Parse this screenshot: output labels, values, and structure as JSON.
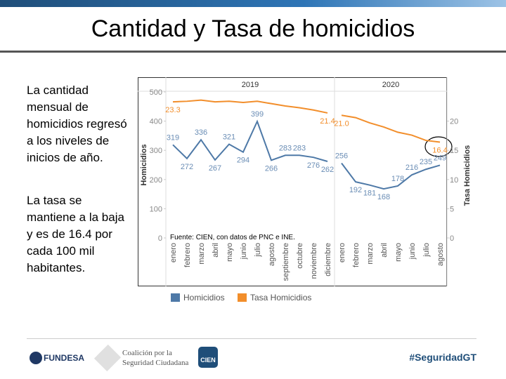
{
  "header": {
    "title": "Cantidad y Tasa de homicidios"
  },
  "body": {
    "paragraphs": [
      "La cantidad mensual de homicidios regresó a los niveles de inicios de año.",
      "La tasa se mantiene a la baja y es de 16.4 por cada 100 mil habitantes."
    ]
  },
  "footer": {
    "logos": [
      "FUNDESA",
      "Coalición por la",
      "Seguridad Ciudadana",
      "CIEN"
    ],
    "hashtag": "#SeguridadGT"
  },
  "chart_data": [
    {
      "type": "line",
      "title": "2019",
      "ylabel": "Homicidios",
      "annotation": "Fuente: CIEN, con datos de PNC e INE.",
      "categories": [
        "enero",
        "febrero",
        "marzo",
        "abril",
        "mayo",
        "junio",
        "julio",
        "agosto",
        "septiembre",
        "octubre",
        "noviembre",
        "diciembre"
      ],
      "ylim": [
        0,
        500
      ],
      "yticks": [
        0,
        100,
        200,
        300,
        400,
        500
      ],
      "y2lim": [
        0,
        25
      ],
      "series": [
        {
          "name": "Homicidios",
          "color": "#4e79a7",
          "values": [
            319,
            272,
            336,
            267,
            321,
            294,
            399,
            266,
            283,
            283,
            276,
            262
          ]
        },
        {
          "name": "Tasa Homicidios",
          "color": "#f28e2b",
          "axis": "y2",
          "values": [
            23.3,
            23.4,
            23.6,
            23.3,
            23.4,
            23.2,
            23.4,
            23.0,
            22.6,
            22.3,
            21.9,
            21.4
          ],
          "value_labels": [
            "23.3",
            null,
            null,
            null,
            null,
            null,
            null,
            null,
            null,
            null,
            null,
            "21.4"
          ]
        }
      ]
    },
    {
      "type": "line",
      "title": "2020",
      "y2label": "Tasa Homicidios",
      "categories": [
        "enero",
        "febrero",
        "marzo",
        "abril",
        "mayo",
        "junio",
        "julio",
        "agosto"
      ],
      "ylim": [
        0,
        500
      ],
      "y2lim": [
        0,
        25
      ],
      "y2ticks": [
        0,
        5,
        10,
        15,
        20
      ],
      "series": [
        {
          "color": "#4e79a7",
          "values": [
            256,
            192,
            181,
            168,
            178,
            216,
            235,
            249
          ]
        },
        {
          "color": "#f28e2b",
          "axis": "y2",
          "values": [
            21.0,
            20.6,
            19.7,
            19.0,
            18.1,
            17.6,
            16.7,
            16.4
          ],
          "value_labels": [
            "21.0",
            null,
            null,
            null,
            null,
            null,
            null,
            "16.4"
          ]
        }
      ]
    }
  ]
}
